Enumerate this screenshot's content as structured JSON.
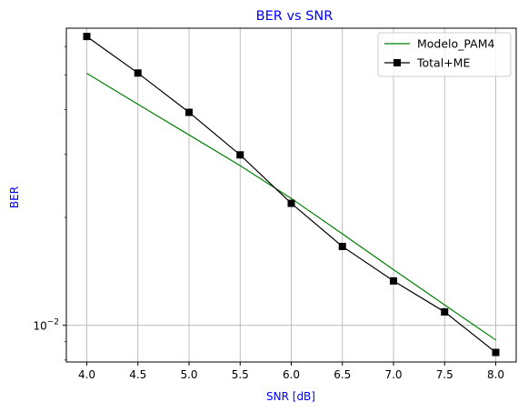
{
  "chart_data": {
    "type": "line",
    "title": "BER vs SNR",
    "xlabel": "SNR [dB]",
    "ylabel": "BER",
    "yscale": "log",
    "xlim": [
      3.8,
      8.2
    ],
    "ylim": [
      0.0079,
      0.0675
    ],
    "x": [
      4.0,
      4.5,
      5.0,
      5.5,
      6.0,
      6.5,
      7.0,
      7.5,
      8.0
    ],
    "x_ticks": [
      "4.0",
      "4.5",
      "5.0",
      "5.5",
      "6.0",
      "6.5",
      "7.0",
      "7.5",
      "8.0"
    ],
    "y_tick_label": "10−2",
    "grid": true,
    "legend_position": "top-right",
    "label_color": "#0000ff",
    "series": [
      {
        "name": "Modelo_PAM4",
        "color": "#008000",
        "marker": "none",
        "values": [
          0.0505,
          0.0414,
          0.034,
          0.0279,
          0.0226,
          0.018,
          0.0143,
          0.0114,
          0.0091
        ]
      },
      {
        "name": "Total+ME",
        "color": "#000000",
        "marker": "square",
        "values": [
          0.064,
          0.0506,
          0.0393,
          0.0299,
          0.0219,
          0.0166,
          0.0133,
          0.0109,
          0.0084
        ]
      }
    ]
  }
}
